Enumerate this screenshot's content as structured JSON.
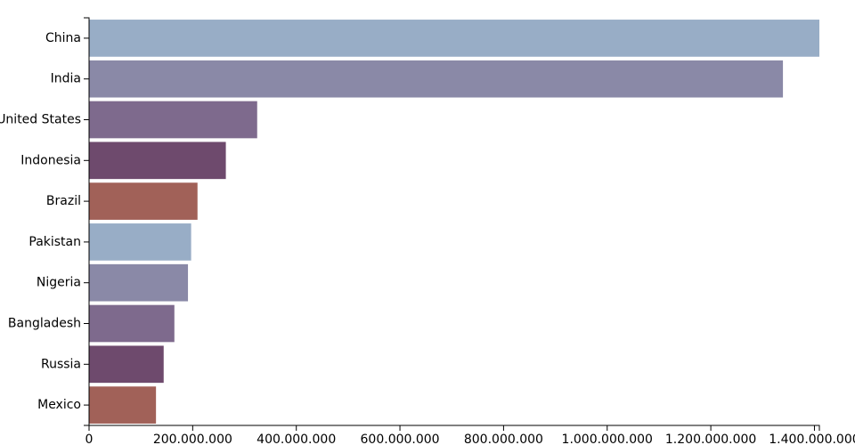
{
  "chart_data": {
    "type": "bar",
    "orientation": "horizontal",
    "title": "",
    "xlabel": "",
    "ylabel": "",
    "categories": [
      "China",
      "India",
      "United States",
      "Indonesia",
      "Brazil",
      "Pakistan",
      "Nigeria",
      "Bangladesh",
      "Russia",
      "Mexico"
    ],
    "values": [
      1409517397,
      1339180127,
      324459463,
      263991379,
      209288278,
      197015955,
      190886311,
      164669751,
      143989754,
      129163276
    ],
    "xlim": [
      0,
      1409517397
    ],
    "x_ticks": [
      0,
      200000000,
      400000000,
      600000000,
      800000000,
      1000000000,
      1200000000,
      1400000000
    ],
    "x_tick_labels": [
      "0",
      "200.000.000",
      "400.000.000",
      "600.000.000",
      "800.000.000",
      "1.000.000.000",
      "1.200.000.000",
      "1.400.000.000"
    ],
    "grid": false,
    "legend": "none",
    "colors": [
      "#98adc6",
      "#8a89a7",
      "#7e6a8d",
      "#6e4a6d",
      "#a16158"
    ]
  }
}
